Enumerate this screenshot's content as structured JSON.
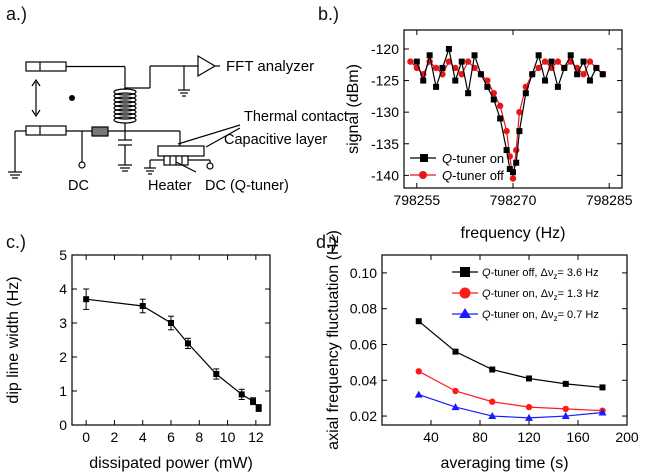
{
  "panels": {
    "a": {
      "label": "a.)",
      "fft": "FFT analyzer",
      "thermal": "Thermal contact",
      "capacitive": "Capacitive layer",
      "dc_left": "DC",
      "heater": "Heater",
      "dc_right": "DC (Q-tuner)"
    },
    "b": {
      "label": "b.)"
    },
    "c": {
      "label": "c.)"
    },
    "d": {
      "label": "d.)"
    }
  },
  "chart_data": [
    {
      "panel": "b",
      "type": "line",
      "xlabel": "frequency (Hz)",
      "ylabel": "signal (dBm)",
      "xlim": [
        798253,
        798287
      ],
      "ylim": [
        -142,
        -117
      ],
      "xticks": [
        798255,
        798270,
        798285
      ],
      "yticks": [
        -120,
        -125,
        -130,
        -135,
        -140
      ],
      "legend": "bottom-left",
      "colors": {
        "on": "#000000",
        "off": "#e8151b"
      },
      "series": [
        {
          "name": "Q-tuner on",
          "x": [
            798255,
            798256,
            798257,
            798258,
            798259,
            798260,
            798261,
            798262,
            798263,
            798264,
            798265,
            798266,
            798267,
            798268,
            798269,
            798269.5,
            798270,
            798270.5,
            798271,
            798272,
            798273,
            798274,
            798275,
            798276,
            798277,
            798278,
            798279,
            798280,
            798281,
            798282,
            798283,
            798284
          ],
          "values": [
            -122,
            -125,
            -121,
            -126,
            -123,
            -120,
            -125,
            -122,
            -127,
            -121,
            -124,
            -126,
            -128,
            -131,
            -136,
            -139,
            -139.5,
            -138,
            -133,
            -127,
            -124,
            -121,
            -125,
            -122,
            -126,
            -123,
            -121,
            -124,
            -122,
            -125,
            -123,
            -124
          ]
        },
        {
          "name": "Q-tuner off",
          "x": [
            798254,
            798255,
            798256,
            798257,
            798258,
            798259,
            798260,
            798261,
            798262,
            798263,
            798264,
            798265,
            798266,
            798267,
            798268,
            798269,
            798269.5,
            798270,
            798270.5,
            798271,
            798272,
            798273,
            798274,
            798275,
            798276,
            798277,
            798278,
            798279,
            798280,
            798281,
            798282,
            798283,
            798284
          ],
          "values": [
            -122,
            -123,
            -124,
            -122,
            -123,
            -124,
            -122,
            -123,
            -124,
            -122,
            -123,
            -124,
            -125,
            -127,
            -129,
            -133,
            -137,
            -140.5,
            -136,
            -130,
            -126,
            -124,
            -123,
            -122,
            -123,
            -122,
            -123,
            -122,
            -123,
            -124,
            -122,
            -123,
            -124
          ]
        }
      ]
    },
    {
      "panel": "c",
      "type": "line",
      "xlabel": "dissipated power (mW)",
      "ylabel": "dip line width (Hz)",
      "xlim": [
        -1,
        13
      ],
      "ylim": [
        0,
        5
      ],
      "xticks": [
        0,
        2,
        4,
        6,
        8,
        10,
        12
      ],
      "yticks": [
        0,
        1,
        2,
        3,
        4,
        5
      ],
      "series": [
        {
          "x": [
            0,
            4,
            6,
            7.2,
            9.2,
            11,
            11.8,
            12.2
          ],
          "values": [
            3.7,
            3.5,
            3.0,
            2.4,
            1.5,
            0.9,
            0.7,
            0.5
          ],
          "errors": [
            0.3,
            0.2,
            0.2,
            0.15,
            0.15,
            0.15,
            0.1,
            0.1
          ]
        }
      ]
    },
    {
      "panel": "d",
      "type": "line",
      "xlabel": "averaging time (s)",
      "ylabel": "axial frequency fluctuation (Hz)",
      "xlim": [
        0,
        200
      ],
      "ylim": [
        0.015,
        0.11
      ],
      "xticks": [
        0,
        40,
        80,
        120,
        160,
        200
      ],
      "xtick_labels": [
        "40",
        "80",
        "120",
        "160",
        "200"
      ],
      "yticks": [
        0.02,
        0.04,
        0.06,
        0.08,
        0.1
      ],
      "legend": "top-right",
      "series": [
        {
          "name_main": "Q-tuner off, Δν",
          "name_sub": "z",
          "name_tail": "= 3.6 Hz",
          "color": "#000000",
          "marker": "square",
          "x": [
            30,
            60,
            90,
            120,
            150,
            180
          ],
          "values": [
            0.073,
            0.056,
            0.046,
            0.041,
            0.038,
            0.036
          ]
        },
        {
          "name_main": "Q-tuner on, Δν",
          "name_sub": "z",
          "name_tail": "= 1.3 Hz",
          "color": "#ff1a1a",
          "marker": "circle",
          "x": [
            30,
            60,
            90,
            120,
            150,
            180
          ],
          "values": [
            0.045,
            0.034,
            0.028,
            0.025,
            0.024,
            0.023
          ]
        },
        {
          "name_main": "Q-tuner on, Δν",
          "name_sub": "z",
          "name_tail": "= 0.7 Hz",
          "color": "#1a1aff",
          "marker": "triangle",
          "x": [
            30,
            60,
            90,
            120,
            150,
            180
          ],
          "values": [
            0.032,
            0.025,
            0.02,
            0.019,
            0.02,
            0.022
          ]
        }
      ]
    }
  ]
}
